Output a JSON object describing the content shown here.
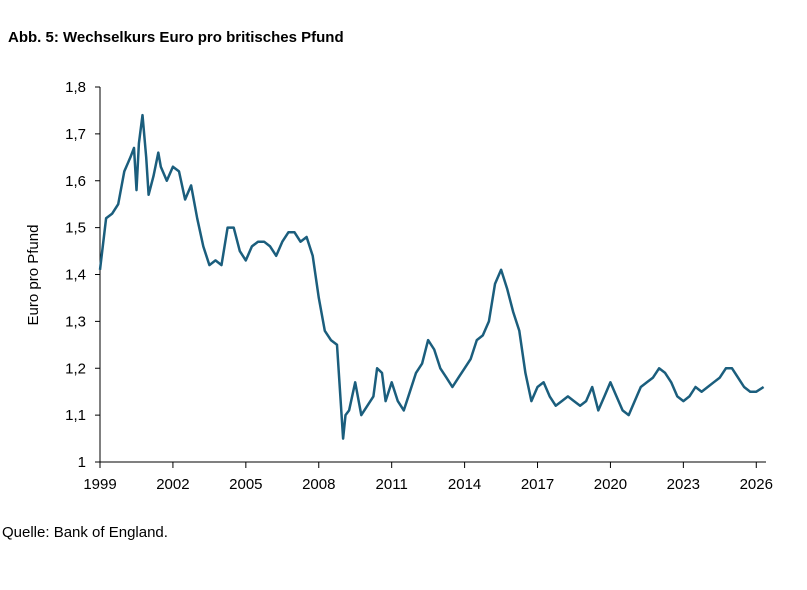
{
  "chart_data": {
    "type": "line",
    "title": "Abb. 5: Wechselkurs Euro pro britisches Pfund",
    "y_label": "Euro pro Pfund",
    "source": "Quelle: Bank of England.",
    "x": [
      1999.0,
      1999.25,
      1999.5,
      1999.75,
      2000.0,
      2000.25,
      2000.4,
      2000.5,
      2000.6,
      2000.75,
      2000.9,
      2001.0,
      2001.2,
      2001.4,
      2001.5,
      2001.75,
      2002.0,
      2002.25,
      2002.5,
      2002.75,
      2003.0,
      2003.25,
      2003.5,
      2003.75,
      2004.0,
      2004.25,
      2004.5,
      2004.75,
      2005.0,
      2005.25,
      2005.5,
      2005.75,
      2006.0,
      2006.25,
      2006.5,
      2006.75,
      2007.0,
      2007.25,
      2007.5,
      2007.75,
      2008.0,
      2008.25,
      2008.5,
      2008.75,
      2009.0,
      2009.1,
      2009.25,
      2009.5,
      2009.75,
      2010.0,
      2010.25,
      2010.4,
      2010.6,
      2010.75,
      2011.0,
      2011.25,
      2011.5,
      2011.75,
      2012.0,
      2012.25,
      2012.5,
      2012.75,
      2013.0,
      2013.25,
      2013.5,
      2013.75,
      2014.0,
      2014.25,
      2014.5,
      2014.75,
      2015.0,
      2015.25,
      2015.5,
      2015.75,
      2016.0,
      2016.25,
      2016.5,
      2016.75,
      2017.0,
      2017.25,
      2017.5,
      2017.75,
      2018.0,
      2018.25,
      2018.5,
      2018.75,
      2019.0,
      2019.25,
      2019.5,
      2019.75,
      2020.0,
      2020.25,
      2020.5,
      2020.75,
      2021.0,
      2021.25,
      2021.5,
      2021.75,
      2022.0,
      2022.25,
      2022.5,
      2022.75,
      2023.0,
      2023.25,
      2023.5,
      2023.75,
      2024.0,
      2024.25,
      2024.5,
      2024.75,
      2025.0,
      2025.25,
      2025.5,
      2025.75,
      2026.0,
      2026.3
    ],
    "series": [
      {
        "name": "Euro pro Pfund",
        "color": "#1b5e7d",
        "values": [
          1.41,
          1.52,
          1.53,
          1.55,
          1.62,
          1.65,
          1.67,
          1.58,
          1.68,
          1.74,
          1.65,
          1.57,
          1.61,
          1.66,
          1.63,
          1.6,
          1.63,
          1.62,
          1.56,
          1.59,
          1.52,
          1.46,
          1.42,
          1.43,
          1.42,
          1.5,
          1.5,
          1.45,
          1.43,
          1.46,
          1.47,
          1.47,
          1.46,
          1.44,
          1.47,
          1.49,
          1.49,
          1.47,
          1.48,
          1.44,
          1.35,
          1.28,
          1.26,
          1.25,
          1.05,
          1.1,
          1.11,
          1.17,
          1.1,
          1.12,
          1.14,
          1.2,
          1.19,
          1.13,
          1.17,
          1.13,
          1.11,
          1.15,
          1.19,
          1.21,
          1.26,
          1.24,
          1.2,
          1.18,
          1.16,
          1.18,
          1.2,
          1.22,
          1.26,
          1.27,
          1.3,
          1.38,
          1.41,
          1.37,
          1.32,
          1.28,
          1.19,
          1.13,
          1.16,
          1.17,
          1.14,
          1.12,
          1.13,
          1.14,
          1.13,
          1.12,
          1.13,
          1.16,
          1.11,
          1.14,
          1.17,
          1.14,
          1.11,
          1.1,
          1.13,
          1.16,
          1.17,
          1.18,
          1.2,
          1.19,
          1.17,
          1.14,
          1.13,
          1.14,
          1.16,
          1.15,
          1.16,
          1.17,
          1.18,
          1.2,
          1.2,
          1.18,
          1.16,
          1.15,
          1.15,
          1.16
        ]
      }
    ],
    "xlim": [
      1999,
      2026.4
    ],
    "xticks": [
      1999,
      2002,
      2005,
      2008,
      2011,
      2014,
      2017,
      2020,
      2023,
      2026
    ],
    "ylim": [
      1,
      1.8
    ],
    "yticks": [
      1,
      {
        "value": 1.1,
        "label": "1,1"
      },
      {
        "value": 1.2,
        "label": "1,2"
      },
      {
        "value": 1.3,
        "label": "1,3"
      },
      {
        "value": 1.4,
        "label": "1,4"
      },
      {
        "value": 1.5,
        "label": "1,5"
      },
      {
        "value": 1.6,
        "label": "1,6"
      },
      {
        "value": 1.7,
        "label": "1,7"
      },
      {
        "value": 1.8,
        "label": "1,8"
      }
    ]
  }
}
